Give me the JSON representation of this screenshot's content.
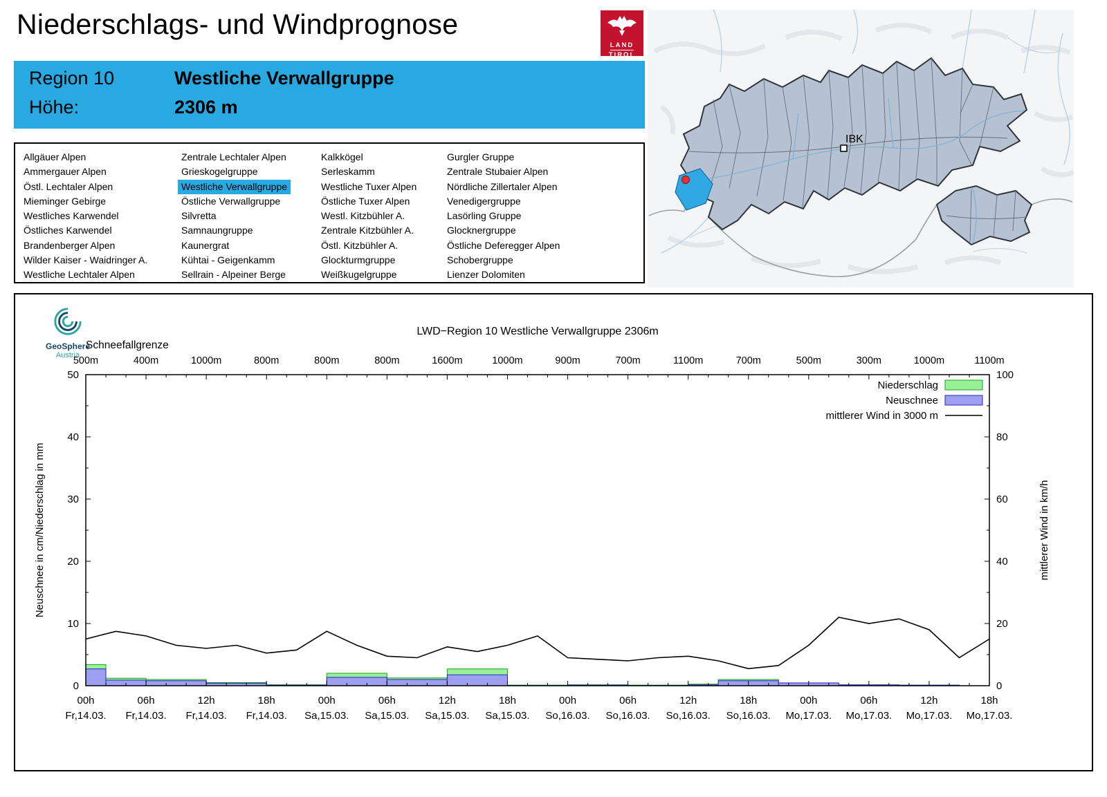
{
  "page": {
    "title": "Niederschlags- und Windprognose"
  },
  "land_tirol_logo": {
    "line1": "LAND",
    "line2": "TIROL"
  },
  "region_header": {
    "region_label": "Region 10",
    "region_name": "Westliche Verwallgruppe",
    "altitude_label": "Höhe:",
    "altitude_value": "2306 m"
  },
  "region_list": {
    "selected": "Westliche Verwallgruppe",
    "columns": [
      [
        "Allgäuer Alpen",
        "Ammergauer Alpen",
        "Östl. Lechtaler Alpen",
        "Mieminger Gebirge",
        "Westliches Karwendel",
        "Östliches Karwendel",
        "Brandenberger Alpen",
        "Wilder Kaiser - Waidringer A.",
        "Westliche Lechtaler Alpen"
      ],
      [
        "Zentrale Lechtaler Alpen",
        "Grieskogelgruppe",
        "Westliche Verwallgruppe",
        "Östliche Verwallgruppe",
        "Silvretta",
        "Samnaungruppe",
        "Kaunergrat",
        "Kühtai - Geigenkamm",
        "Sellrain - Alpeiner Berge"
      ],
      [
        "Kalkkögel",
        "Serleskamm",
        "Westliche Tuxer Alpen",
        "Östliche Tuxer Alpen",
        "Westl. Kitzbühler A.",
        "Zentrale Kitzbühler A.",
        "Östl. Kitzbühler A.",
        "Glockturmgruppe",
        "Weißkugelgruppe"
      ],
      [
        "Gurgler Gruppe",
        "Zentrale Stubaier Alpen",
        "Nördliche Zillertaler Alpen",
        "Venedigergruppe",
        "Lasörling Gruppe",
        "Glocknergruppe",
        "Östliche Deferegger Alpen",
        "Schobergruppe",
        "Lienzer Dolomiten"
      ]
    ]
  },
  "map": {
    "city_label": "IBK"
  },
  "geosphere_logo": {
    "name": "GeoSphere",
    "country": "Austria"
  },
  "chart": {
    "title": "LWD−Region 10 Westliche Verwallgruppe 2306m",
    "snowline_label": "Schneefallgrenze",
    "y_left_label": "Neuschnee in cm/Niederschlag in mm",
    "y_right_label": "mittlerer Wind in km/h",
    "legend": {
      "niederschlag": "Niederschlag",
      "neuschnee": "Neuschnee",
      "wind": "mittlerer Wind in 3000 m"
    }
  },
  "chart_data": {
    "type": "bar",
    "title": "LWD−Region 10 Westliche Verwallgruppe 2306m",
    "x_range_hours": [
      0,
      90
    ],
    "tick_interval_hours": 6,
    "x_ticks": [
      {
        "time": "00h",
        "date": "Fr,14.03."
      },
      {
        "time": "06h",
        "date": "Fr,14.03."
      },
      {
        "time": "12h",
        "date": "Fr,14.03."
      },
      {
        "time": "18h",
        "date": "Fr,14.03."
      },
      {
        "time": "00h",
        "date": "Sa,15.03."
      },
      {
        "time": "06h",
        "date": "Sa,15.03."
      },
      {
        "time": "12h",
        "date": "Sa,15.03."
      },
      {
        "time": "18h",
        "date": "Sa,15.03."
      },
      {
        "time": "00h",
        "date": "So,16.03."
      },
      {
        "time": "06h",
        "date": "So,16.03."
      },
      {
        "time": "12h",
        "date": "So,16.03."
      },
      {
        "time": "18h",
        "date": "So,16.03."
      },
      {
        "time": "00h",
        "date": "Mo,17.03."
      },
      {
        "time": "06h",
        "date": "Mo,17.03."
      },
      {
        "time": "12h",
        "date": "Mo,17.03."
      },
      {
        "time": "18h",
        "date": "Mo,17.03."
      }
    ],
    "snowline_values": [
      "500m",
      "400m",
      "1000m",
      "800m",
      "800m",
      "800m",
      "1600m",
      "1000m",
      "900m",
      "700m",
      "1100m",
      "700m",
      "500m",
      "300m",
      "1000m",
      "1100m"
    ],
    "y_left": {
      "min": 0,
      "max": 50,
      "ticks": [
        0,
        10,
        20,
        30,
        40,
        50
      ]
    },
    "y_right": {
      "min": 0,
      "max": 100,
      "ticks": [
        0,
        20,
        40,
        60,
        80,
        100
      ]
    },
    "segments": [
      {
        "start_h": 0,
        "end_h": 2,
        "niederschlag_mm": 3.4,
        "neuschnee_cm": 2.7
      },
      {
        "start_h": 2,
        "end_h": 6,
        "niederschlag_mm": 1.2,
        "neuschnee_cm": 0.9
      },
      {
        "start_h": 6,
        "end_h": 12,
        "niederschlag_mm": 1.0,
        "neuschnee_cm": 0.8
      },
      {
        "start_h": 12,
        "end_h": 18,
        "niederschlag_mm": 0.5,
        "neuschnee_cm": 0.4
      },
      {
        "start_h": 18,
        "end_h": 24,
        "niederschlag_mm": 0.15,
        "neuschnee_cm": 0.1
      },
      {
        "start_h": 24,
        "end_h": 30,
        "niederschlag_mm": 2.0,
        "neuschnee_cm": 1.35
      },
      {
        "start_h": 30,
        "end_h": 36,
        "niederschlag_mm": 1.25,
        "neuschnee_cm": 1.0
      },
      {
        "start_h": 36,
        "end_h": 42,
        "niederschlag_mm": 2.7,
        "neuschnee_cm": 1.75
      },
      {
        "start_h": 42,
        "end_h": 48,
        "niederschlag_mm": 0.1,
        "neuschnee_cm": 0.05
      },
      {
        "start_h": 48,
        "end_h": 54,
        "niederschlag_mm": 0.15,
        "neuschnee_cm": 0.1
      },
      {
        "start_h": 54,
        "end_h": 60,
        "niederschlag_mm": 0.1,
        "neuschnee_cm": 0.05
      },
      {
        "start_h": 60,
        "end_h": 63,
        "niederschlag_mm": 0.25,
        "neuschnee_cm": 0.15
      },
      {
        "start_h": 63,
        "end_h": 69,
        "niederschlag_mm": 1.0,
        "neuschnee_cm": 0.8
      },
      {
        "start_h": 69,
        "end_h": 75,
        "niederschlag_mm": 0.2,
        "neuschnee_cm": 0.45
      },
      {
        "start_h": 75,
        "end_h": 81,
        "niederschlag_mm": 0.1,
        "neuschnee_cm": 0.15
      },
      {
        "start_h": 81,
        "end_h": 87,
        "niederschlag_mm": 0.05,
        "neuschnee_cm": 0.1
      }
    ],
    "wind": {
      "unit": "km/h",
      "hours": [
        0,
        3,
        6,
        9,
        12,
        15,
        18,
        21,
        24,
        27,
        30,
        33,
        36,
        39,
        42,
        45,
        48,
        51,
        54,
        57,
        60,
        63,
        66,
        69,
        72,
        75,
        78,
        81,
        84,
        87,
        90
      ],
      "values": [
        15,
        17.5,
        16,
        13,
        12,
        13,
        10.5,
        11.5,
        17.5,
        13,
        9.5,
        9,
        12.5,
        11,
        13,
        16,
        9,
        8.5,
        8,
        9,
        9.5,
        8,
        5.5,
        6.5,
        13,
        22,
        20,
        21.5,
        18,
        9,
        15
      ]
    },
    "colors": {
      "niederschlag_fill": "#98f098",
      "niederschlag_stroke": "#1ca01c",
      "neuschnee_fill": "#9e9ef2",
      "neuschnee_stroke": "#2828b4",
      "wind": "#000000",
      "region_highlight": "#29a9e1"
    }
  }
}
